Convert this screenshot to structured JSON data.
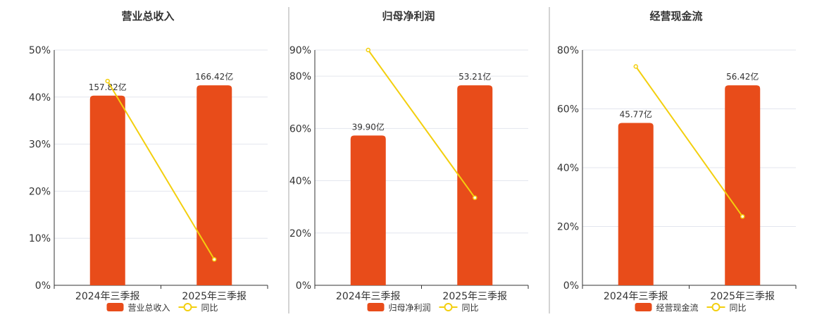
{
  "colors": {
    "bar": "#E84C1A",
    "line": "#F3CF0E",
    "grid": "#E3E6EE",
    "axis": "#333333",
    "divider": "#AAAAAA"
  },
  "chart_data": [
    {
      "type": "bar",
      "title": "营业总收入",
      "categories": [
        "2024年三季报",
        "2025年三季报"
      ],
      "bar_values": [
        40.3,
        42.5
      ],
      "bar_labels": [
        "157.82亿",
        "166.42亿"
      ],
      "line_values": [
        43.4,
        5.5
      ],
      "ylim": [
        0,
        50
      ],
      "yticks": [
        0,
        10,
        20,
        30,
        40,
        50
      ],
      "ytick_labels": [
        "0%",
        "10%",
        "20%",
        "30%",
        "40%",
        "50%"
      ],
      "legend": [
        "营业总收入",
        "同比"
      ],
      "grid": true,
      "legend_position": "bottom"
    },
    {
      "type": "bar",
      "title": "归母净利润",
      "categories": [
        "2024年三季报",
        "2025年三季报"
      ],
      "bar_values": [
        57.3,
        76.5
      ],
      "bar_labels": [
        "39.90亿",
        "53.21亿"
      ],
      "line_values": [
        90,
        33.5
      ],
      "ylim": [
        0,
        90
      ],
      "yticks": [
        0,
        20,
        40,
        60,
        80,
        90
      ],
      "ytick_labels": [
        "0%",
        "20%",
        "40%",
        "60%",
        "80%",
        "90%"
      ],
      "legend": [
        "归母净利润",
        "同比"
      ],
      "grid": true,
      "legend_position": "bottom"
    },
    {
      "type": "bar",
      "title": "经营现金流",
      "categories": [
        "2024年三季报",
        "2025年三季报"
      ],
      "bar_values": [
        55.2,
        68.0
      ],
      "bar_labels": [
        "45.77亿",
        "56.42亿"
      ],
      "line_values": [
        74.4,
        23.4
      ],
      "ylim": [
        0,
        80
      ],
      "yticks": [
        0,
        20,
        40,
        60,
        80
      ],
      "ytick_labels": [
        "0%",
        "20%",
        "40%",
        "60%",
        "80%"
      ],
      "legend": [
        "经营现金流",
        "同比"
      ],
      "grid": true,
      "legend_position": "bottom"
    }
  ]
}
